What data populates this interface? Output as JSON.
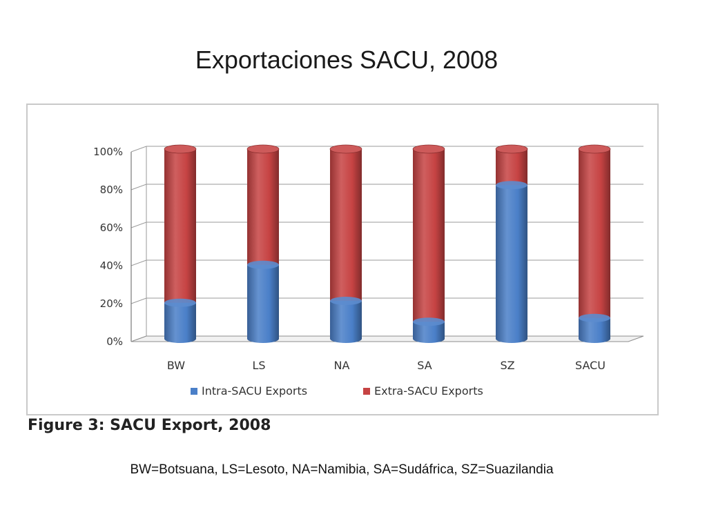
{
  "slide": {
    "title": "Exportaciones SACU, 2008",
    "footnote": "BW=Botsuana, LS=Lesoto, NA=Namibia, SA=Sudáfrica, SZ=Suazilandia"
  },
  "figure_caption": "Figure 3:  SACU Export, 2008",
  "colors": {
    "intra": "#4a7fc8",
    "extra": "#c64343",
    "grid": "#9a9a9a"
  },
  "chart_data": {
    "type": "bar",
    "stacked": true,
    "title": "",
    "xlabel": "",
    "ylabel": "",
    "categories": [
      "BW",
      "LS",
      "NA",
      "SA",
      "SZ",
      "SACU"
    ],
    "series": [
      {
        "name": "Intra-SACU Exports",
        "values": [
          19,
          39,
          20,
          9,
          81,
          11
        ]
      },
      {
        "name": "Extra-SACU Exports",
        "values": [
          81,
          61,
          80,
          91,
          19,
          89
        ]
      }
    ],
    "ylim": [
      0,
      100
    ],
    "yticks": [
      "0%",
      "20%",
      "40%",
      "60%",
      "80%",
      "100%"
    ],
    "grid": true,
    "legend": "bottom"
  }
}
